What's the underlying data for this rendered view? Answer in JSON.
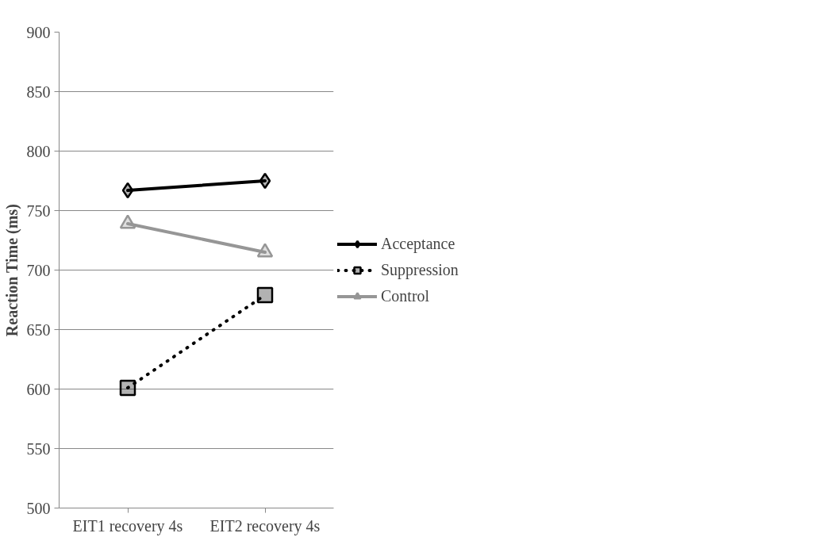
{
  "chart_data": {
    "type": "line",
    "ylabel": "Reaction Time (ms)",
    "categories": [
      "EIT1 recovery 4s",
      "EIT2 recovery 4s"
    ],
    "series": [
      {
        "name": "Acceptance",
        "color": "#000000",
        "values": [
          767,
          775
        ],
        "marker": "diamond",
        "line_style": "solid"
      },
      {
        "name": "Suppression",
        "color": "#000000",
        "values": [
          601,
          679
        ],
        "marker": "square",
        "line_style": "dotted"
      },
      {
        "name": "Control",
        "color": "#969696",
        "values": [
          739,
          715
        ],
        "marker": "triangle",
        "line_style": "solid"
      }
    ],
    "ylim": [
      500,
      900
    ],
    "yticks": [
      500,
      550,
      600,
      650,
      700,
      750,
      800,
      850,
      900
    ],
    "grid": "y",
    "legend": "right"
  }
}
